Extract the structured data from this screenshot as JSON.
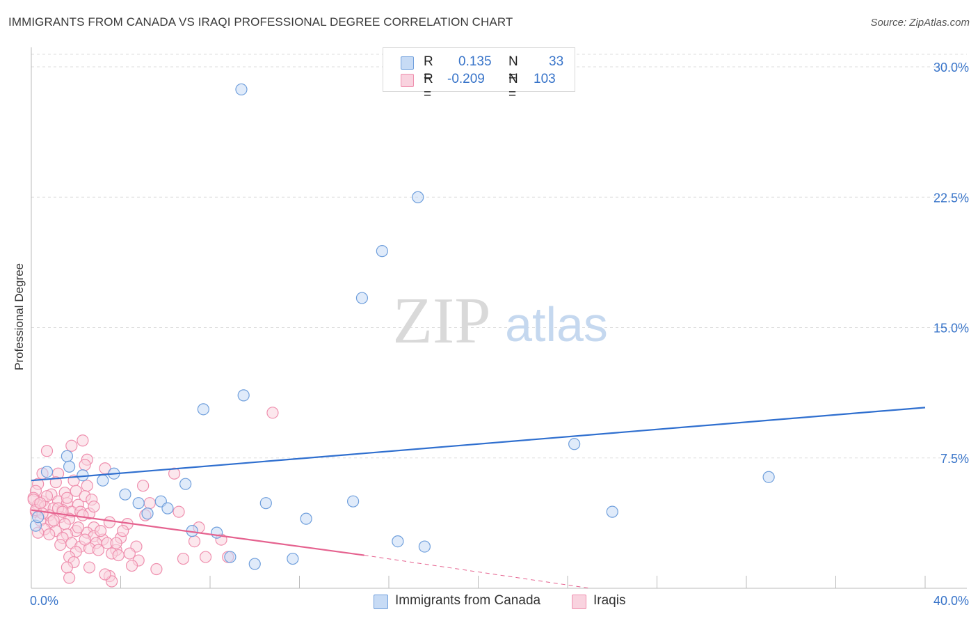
{
  "header": {
    "title": "IMMIGRANTS FROM CANADA VS IRAQI PROFESSIONAL DEGREE CORRELATION CHART",
    "source": "Source: ZipAtlas.com"
  },
  "watermark": {
    "zip": "ZIP",
    "atlas": "atlas"
  },
  "legend": {
    "rows": [
      {
        "r_label": "R =",
        "r_value": "0.135",
        "n_label": "N =",
        "n_value": "33",
        "color": "#aac8f0"
      },
      {
        "r_label": "R =",
        "r_value": "-0.209",
        "n_label": "N =",
        "n_value": "103",
        "color": "#f5b8cb"
      }
    ]
  },
  "bottom_legend": [
    {
      "label": "Immigrants from Canada",
      "color": "#aac8f0"
    },
    {
      "label": "Iraqis",
      "color": "#f5b8cb"
    }
  ],
  "colors": {
    "blue_stroke": "#6f9fdc",
    "blue_fill": "#c7dbf5",
    "blue_line": "#2f6fcf",
    "pink_stroke": "#ef8fae",
    "pink_fill": "#f9d3df",
    "pink_line": "#e5628f",
    "axis_label": "#3874c9",
    "grid": "#dddddd"
  },
  "chart_data": {
    "type": "scatter",
    "title": "IMMIGRANTS FROM CANADA VS IRAQI PROFESSIONAL DEGREE CORRELATION CHART",
    "xlabel": "",
    "ylabel": "Professional Degree",
    "xlim": [
      0,
      40
    ],
    "ylim": [
      0,
      30
    ],
    "x_tick_labels": [
      "0.0%",
      "40.0%"
    ],
    "y_ticks": [
      7.5,
      15.0,
      22.5,
      30.0
    ],
    "y_tick_labels": [
      "7.5%",
      "15.0%",
      "22.5%",
      "30.0%"
    ],
    "grid": true,
    "series": [
      {
        "name": "Immigrants from Canada",
        "r": 0.135,
        "n": 33,
        "trend": {
          "x": [
            0,
            40
          ],
          "y": [
            6.2,
            10.4
          ]
        },
        "points": [
          [
            9.4,
            28.7
          ],
          [
            17.3,
            22.5
          ],
          [
            15.7,
            19.4
          ],
          [
            14.8,
            16.7
          ],
          [
            9.5,
            11.1
          ],
          [
            7.7,
            10.3
          ],
          [
            24.3,
            8.3
          ],
          [
            1.6,
            7.6
          ],
          [
            1.7,
            7.0
          ],
          [
            0.7,
            6.7
          ],
          [
            2.3,
            6.5
          ],
          [
            3.7,
            6.6
          ],
          [
            3.2,
            6.2
          ],
          [
            6.9,
            6.0
          ],
          [
            33.0,
            6.4
          ],
          [
            4.2,
            5.4
          ],
          [
            4.8,
            4.9
          ],
          [
            5.8,
            5.0
          ],
          [
            6.1,
            4.6
          ],
          [
            10.5,
            4.9
          ],
          [
            14.4,
            5.0
          ],
          [
            5.2,
            4.3
          ],
          [
            26.0,
            4.4
          ],
          [
            12.3,
            4.0
          ],
          [
            7.2,
            3.3
          ],
          [
            8.3,
            3.2
          ],
          [
            0.2,
            3.6
          ],
          [
            16.4,
            2.7
          ],
          [
            17.6,
            2.4
          ],
          [
            8.9,
            1.8
          ],
          [
            11.7,
            1.7
          ],
          [
            10.0,
            1.4
          ],
          [
            0.3,
            4.1
          ]
        ]
      },
      {
        "name": "Iraqis",
        "r": -0.209,
        "n": 103,
        "trend": {
          "x": [
            0,
            14.9
          ],
          "y": [
            4.5,
            1.9
          ]
        },
        "trend_extension": {
          "x": [
            14.9,
            25.0
          ],
          "y": [
            1.9,
            0.0
          ]
        },
        "points": [
          [
            10.8,
            10.1
          ],
          [
            2.3,
            8.5
          ],
          [
            0.7,
            7.9
          ],
          [
            1.8,
            8.2
          ],
          [
            2.5,
            7.4
          ],
          [
            2.4,
            7.1
          ],
          [
            3.3,
            6.9
          ],
          [
            1.2,
            6.6
          ],
          [
            0.5,
            6.6
          ],
          [
            6.4,
            6.6
          ],
          [
            1.9,
            6.2
          ],
          [
            1.1,
            6.1
          ],
          [
            0.3,
            6.0
          ],
          [
            2.5,
            5.9
          ],
          [
            5.0,
            5.9
          ],
          [
            0.2,
            5.6
          ],
          [
            0.9,
            5.4
          ],
          [
            1.5,
            5.5
          ],
          [
            2.0,
            5.6
          ],
          [
            2.4,
            5.3
          ],
          [
            2.7,
            5.1
          ],
          [
            0.1,
            5.2
          ],
          [
            0.5,
            5.0
          ],
          [
            1.2,
            5.0
          ],
          [
            1.6,
            4.9
          ],
          [
            2.1,
            4.8
          ],
          [
            0.3,
            4.8
          ],
          [
            0.6,
            4.7
          ],
          [
            1.0,
            4.6
          ],
          [
            1.4,
            4.5
          ],
          [
            1.8,
            4.4
          ],
          [
            2.2,
            4.4
          ],
          [
            2.6,
            4.3
          ],
          [
            0.2,
            4.4
          ],
          [
            0.8,
            4.2
          ],
          [
            1.3,
            4.1
          ],
          [
            1.7,
            4.0
          ],
          [
            5.1,
            4.2
          ],
          [
            6.6,
            4.4
          ],
          [
            0.4,
            3.9
          ],
          [
            0.9,
            3.8
          ],
          [
            1.5,
            3.7
          ],
          [
            3.5,
            3.8
          ],
          [
            4.3,
            3.7
          ],
          [
            2.8,
            3.5
          ],
          [
            0.6,
            3.4
          ],
          [
            1.1,
            3.3
          ],
          [
            2.0,
            3.3
          ],
          [
            2.5,
            3.2
          ],
          [
            0.3,
            3.2
          ],
          [
            1.6,
            3.1
          ],
          [
            2.8,
            3.0
          ],
          [
            1.4,
            2.9
          ],
          [
            3.2,
            2.8
          ],
          [
            4.0,
            2.9
          ],
          [
            7.3,
            2.7
          ],
          [
            8.5,
            2.8
          ],
          [
            1.8,
            2.6
          ],
          [
            2.9,
            2.6
          ],
          [
            3.4,
            2.6
          ],
          [
            2.2,
            2.4
          ],
          [
            2.6,
            2.3
          ],
          [
            3.8,
            2.2
          ],
          [
            4.7,
            2.4
          ],
          [
            2.0,
            2.1
          ],
          [
            3.0,
            2.2
          ],
          [
            3.6,
            2.0
          ],
          [
            4.4,
            2.0
          ],
          [
            1.7,
            1.8
          ],
          [
            3.9,
            1.9
          ],
          [
            6.8,
            1.7
          ],
          [
            7.8,
            1.8
          ],
          [
            1.9,
            1.5
          ],
          [
            4.8,
            1.6
          ],
          [
            8.8,
            1.8
          ],
          [
            1.6,
            1.2
          ],
          [
            2.6,
            1.2
          ],
          [
            4.5,
            1.3
          ],
          [
            5.6,
            1.1
          ],
          [
            1.7,
            0.6
          ],
          [
            3.5,
            0.7
          ],
          [
            3.6,
            0.4
          ],
          [
            3.3,
            0.8
          ],
          [
            7.5,
            3.5
          ],
          [
            3.8,
            2.6
          ],
          [
            5.3,
            4.9
          ],
          [
            0.1,
            5.1
          ],
          [
            0.2,
            4.5
          ],
          [
            1.2,
            4.6
          ],
          [
            2.8,
            4.7
          ],
          [
            0.7,
            5.3
          ],
          [
            1.6,
            5.2
          ],
          [
            2.3,
            4.2
          ],
          [
            0.4,
            4.9
          ],
          [
            1.0,
            3.9
          ],
          [
            1.4,
            4.4
          ],
          [
            2.1,
            3.5
          ],
          [
            0.8,
            3.1
          ],
          [
            4.1,
            3.3
          ],
          [
            2.4,
            2.8
          ],
          [
            3.1,
            3.3
          ],
          [
            1.3,
            2.5
          ],
          [
            0.5,
            4.3
          ]
        ]
      }
    ]
  }
}
